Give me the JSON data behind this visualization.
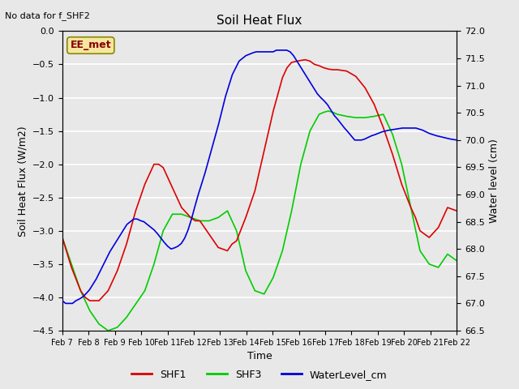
{
  "title": "Soil Heat Flux",
  "top_left_text": "No data for f_SHF2",
  "box_label": "EE_met",
  "xlabel": "Time",
  "ylabel_left": "Soil Heat Flux (W/m2)",
  "ylabel_right": "Water level (cm)",
  "ylim_left": [
    -4.5,
    0.0
  ],
  "ylim_right": [
    66.5,
    72.0
  ],
  "xtick_labels": [
    "Feb 7",
    "Feb 8",
    "Feb 9",
    "Feb 10",
    "Feb 11",
    "Feb 12",
    "Feb 13",
    "Feb 14",
    "Feb 15",
    "Feb 16",
    "Feb 17",
    "Feb 18",
    "Feb 19",
    "Feb 20",
    "Feb 21",
    "Feb 22"
  ],
  "yticks_left": [
    0.0,
    -0.5,
    -1.0,
    -1.5,
    -2.0,
    -2.5,
    -3.0,
    -3.5,
    -4.0,
    -4.5
  ],
  "yticks_right": [
    72.0,
    71.5,
    71.0,
    70.5,
    70.0,
    69.5,
    69.0,
    68.5,
    68.0,
    67.5,
    67.0,
    66.5
  ],
  "color_shf1": "#dd0000",
  "color_shf3": "#00cc00",
  "color_wl": "#0000dd",
  "bg_color": "#e8e8e8",
  "plot_bg": "#e8e8e8",
  "legend_items": [
    "SHF1",
    "SHF3",
    "WaterLevel_cm"
  ],
  "shf1_x": [
    0,
    0.5,
    1,
    1.25,
    1.5,
    2,
    2.5,
    3,
    3.5,
    4,
    4.5,
    5,
    5.25,
    5.5,
    6,
    6.5,
    7,
    7.25,
    7.5,
    8,
    8.25,
    8.5,
    9,
    9.25,
    9.5,
    10,
    10.5,
    11,
    11.5,
    12,
    12.25,
    12.5,
    13,
    13.25,
    13.5,
    13.75,
    14,
    14.25,
    14.5,
    14.75,
    15
  ],
  "shf1_y": [
    -3.1,
    -3.55,
    -3.9,
    -4.0,
    -4.05,
    -4.05,
    -3.9,
    -3.6,
    -3.2,
    -2.7,
    -2.3,
    -2.0,
    -2.0,
    -2.05,
    -2.35,
    -2.65,
    -2.8,
    -2.85,
    -2.85,
    -3.05,
    -3.15,
    -3.25,
    -3.3,
    -3.2,
    -3.15,
    -2.8,
    -2.4,
    -1.8,
    -1.2,
    -0.7,
    -0.55,
    -0.47,
    -0.44,
    -0.43,
    -0.45,
    -0.5,
    -0.52,
    -0.55,
    -0.57,
    -0.58,
    -0.58
  ],
  "shf1_x2": [
    15,
    15.5,
    16,
    16.5,
    17,
    17.5,
    18,
    18.5,
    19,
    19.25,
    19.5,
    20,
    20.5,
    21,
    21.5
  ],
  "shf1_y2": [
    -0.58,
    -0.6,
    -0.68,
    -0.85,
    -1.1,
    -1.45,
    -1.85,
    -2.3,
    -2.65,
    -2.8,
    -3.0,
    -3.1,
    -2.95,
    -2.65,
    -2.7
  ],
  "shf3_x": [
    0,
    0.5,
    1,
    1.5,
    2,
    2.5,
    3,
    3.5,
    4,
    4.5,
    5,
    5.5,
    6,
    6.5,
    7,
    7.5,
    8,
    8.5,
    9,
    9.5,
    10,
    10.5,
    11,
    11.5,
    12,
    12.5,
    13,
    13.5,
    14,
    14.25,
    14.5,
    14.75,
    15,
    15.5,
    16,
    16.5,
    17,
    17.5,
    18,
    18.5,
    19,
    19.5,
    20,
    20.5,
    21,
    21.5
  ],
  "shf3_y": [
    -3.1,
    -3.5,
    -3.9,
    -4.2,
    -4.4,
    -4.5,
    -4.45,
    -4.3,
    -4.1,
    -3.9,
    -3.5,
    -3.0,
    -2.75,
    -2.75,
    -2.8,
    -2.85,
    -2.85,
    -2.8,
    -2.7,
    -3.0,
    -3.6,
    -3.9,
    -3.95,
    -3.7,
    -3.3,
    -2.7,
    -2.0,
    -1.5,
    -1.25,
    -1.22,
    -1.2,
    -1.22,
    -1.25,
    -1.28,
    -1.3,
    -1.3,
    -1.28,
    -1.25,
    -1.55,
    -2.0,
    -2.65,
    -3.3,
    -3.5,
    -3.55,
    -3.35,
    -3.45
  ],
  "wl_x": [
    0,
    0.25,
    0.5,
    0.75,
    1,
    1.25,
    1.5,
    1.75,
    2,
    2.5,
    3,
    3.5,
    4,
    4.25,
    4.5,
    4.75,
    5,
    5.25,
    5.5,
    5.75,
    6,
    6.25,
    6.5,
    6.75,
    7,
    7.25,
    7.5,
    7.75,
    8,
    8.25,
    8.5,
    8.75,
    9,
    9.25,
    9.5,
    9.75,
    10,
    10.5,
    11,
    11.5,
    12,
    12.5,
    13,
    13.5,
    14,
    14.25,
    14.5,
    14.75,
    15,
    15.25,
    15.5,
    15.75,
    16,
    16.25,
    16.5,
    16.75,
    17,
    17.25,
    17.5,
    17.75,
    18,
    18.25,
    18.5,
    18.75,
    19,
    19.25,
    19.5,
    19.75,
    20,
    20.25,
    20.5,
    20.75,
    21,
    21.5
  ],
  "wl_y": [
    67.05,
    67.0,
    67.0,
    67.0,
    67.05,
    67.08,
    67.12,
    67.18,
    67.25,
    67.45,
    67.7,
    67.95,
    68.15,
    68.25,
    68.35,
    68.45,
    68.5,
    68.55,
    68.55,
    68.52,
    68.5,
    68.45,
    68.4,
    68.35,
    68.28,
    68.2,
    68.12,
    68.05,
    68.0,
    68.02,
    68.05,
    68.1,
    68.2,
    68.35,
    68.55,
    68.78,
    69.0,
    69.4,
    69.85,
    70.3,
    70.8,
    71.2,
    71.45,
    71.55,
    71.6,
    71.62,
    71.62,
    71.62,
    71.62,
    71.62,
    71.62,
    71.65,
    71.65,
    71.65,
    71.65,
    71.62,
    71.55,
    71.45,
    71.35,
    71.25,
    71.15,
    71.05,
    70.95,
    70.85,
    70.78,
    70.72,
    70.65,
    70.55,
    70.45,
    70.38,
    70.3,
    70.22,
    70.15,
    70.0
  ],
  "wl_x2": [
    21.5,
    22,
    22.25,
    22.5,
    22.75,
    23,
    23.5,
    24,
    24.5,
    25,
    25.25,
    25.5,
    25.75,
    26,
    26.25,
    26.5,
    26.75,
    27,
    27.5,
    28,
    28.5,
    29
  ],
  "wl_y2": [
    70.0,
    70.0,
    70.02,
    70.05,
    70.08,
    70.1,
    70.15,
    70.18,
    70.2,
    70.22,
    70.22,
    70.22,
    70.22,
    70.22,
    70.2,
    70.18,
    70.15,
    70.12,
    70.08,
    70.05,
    70.02,
    70.0
  ]
}
